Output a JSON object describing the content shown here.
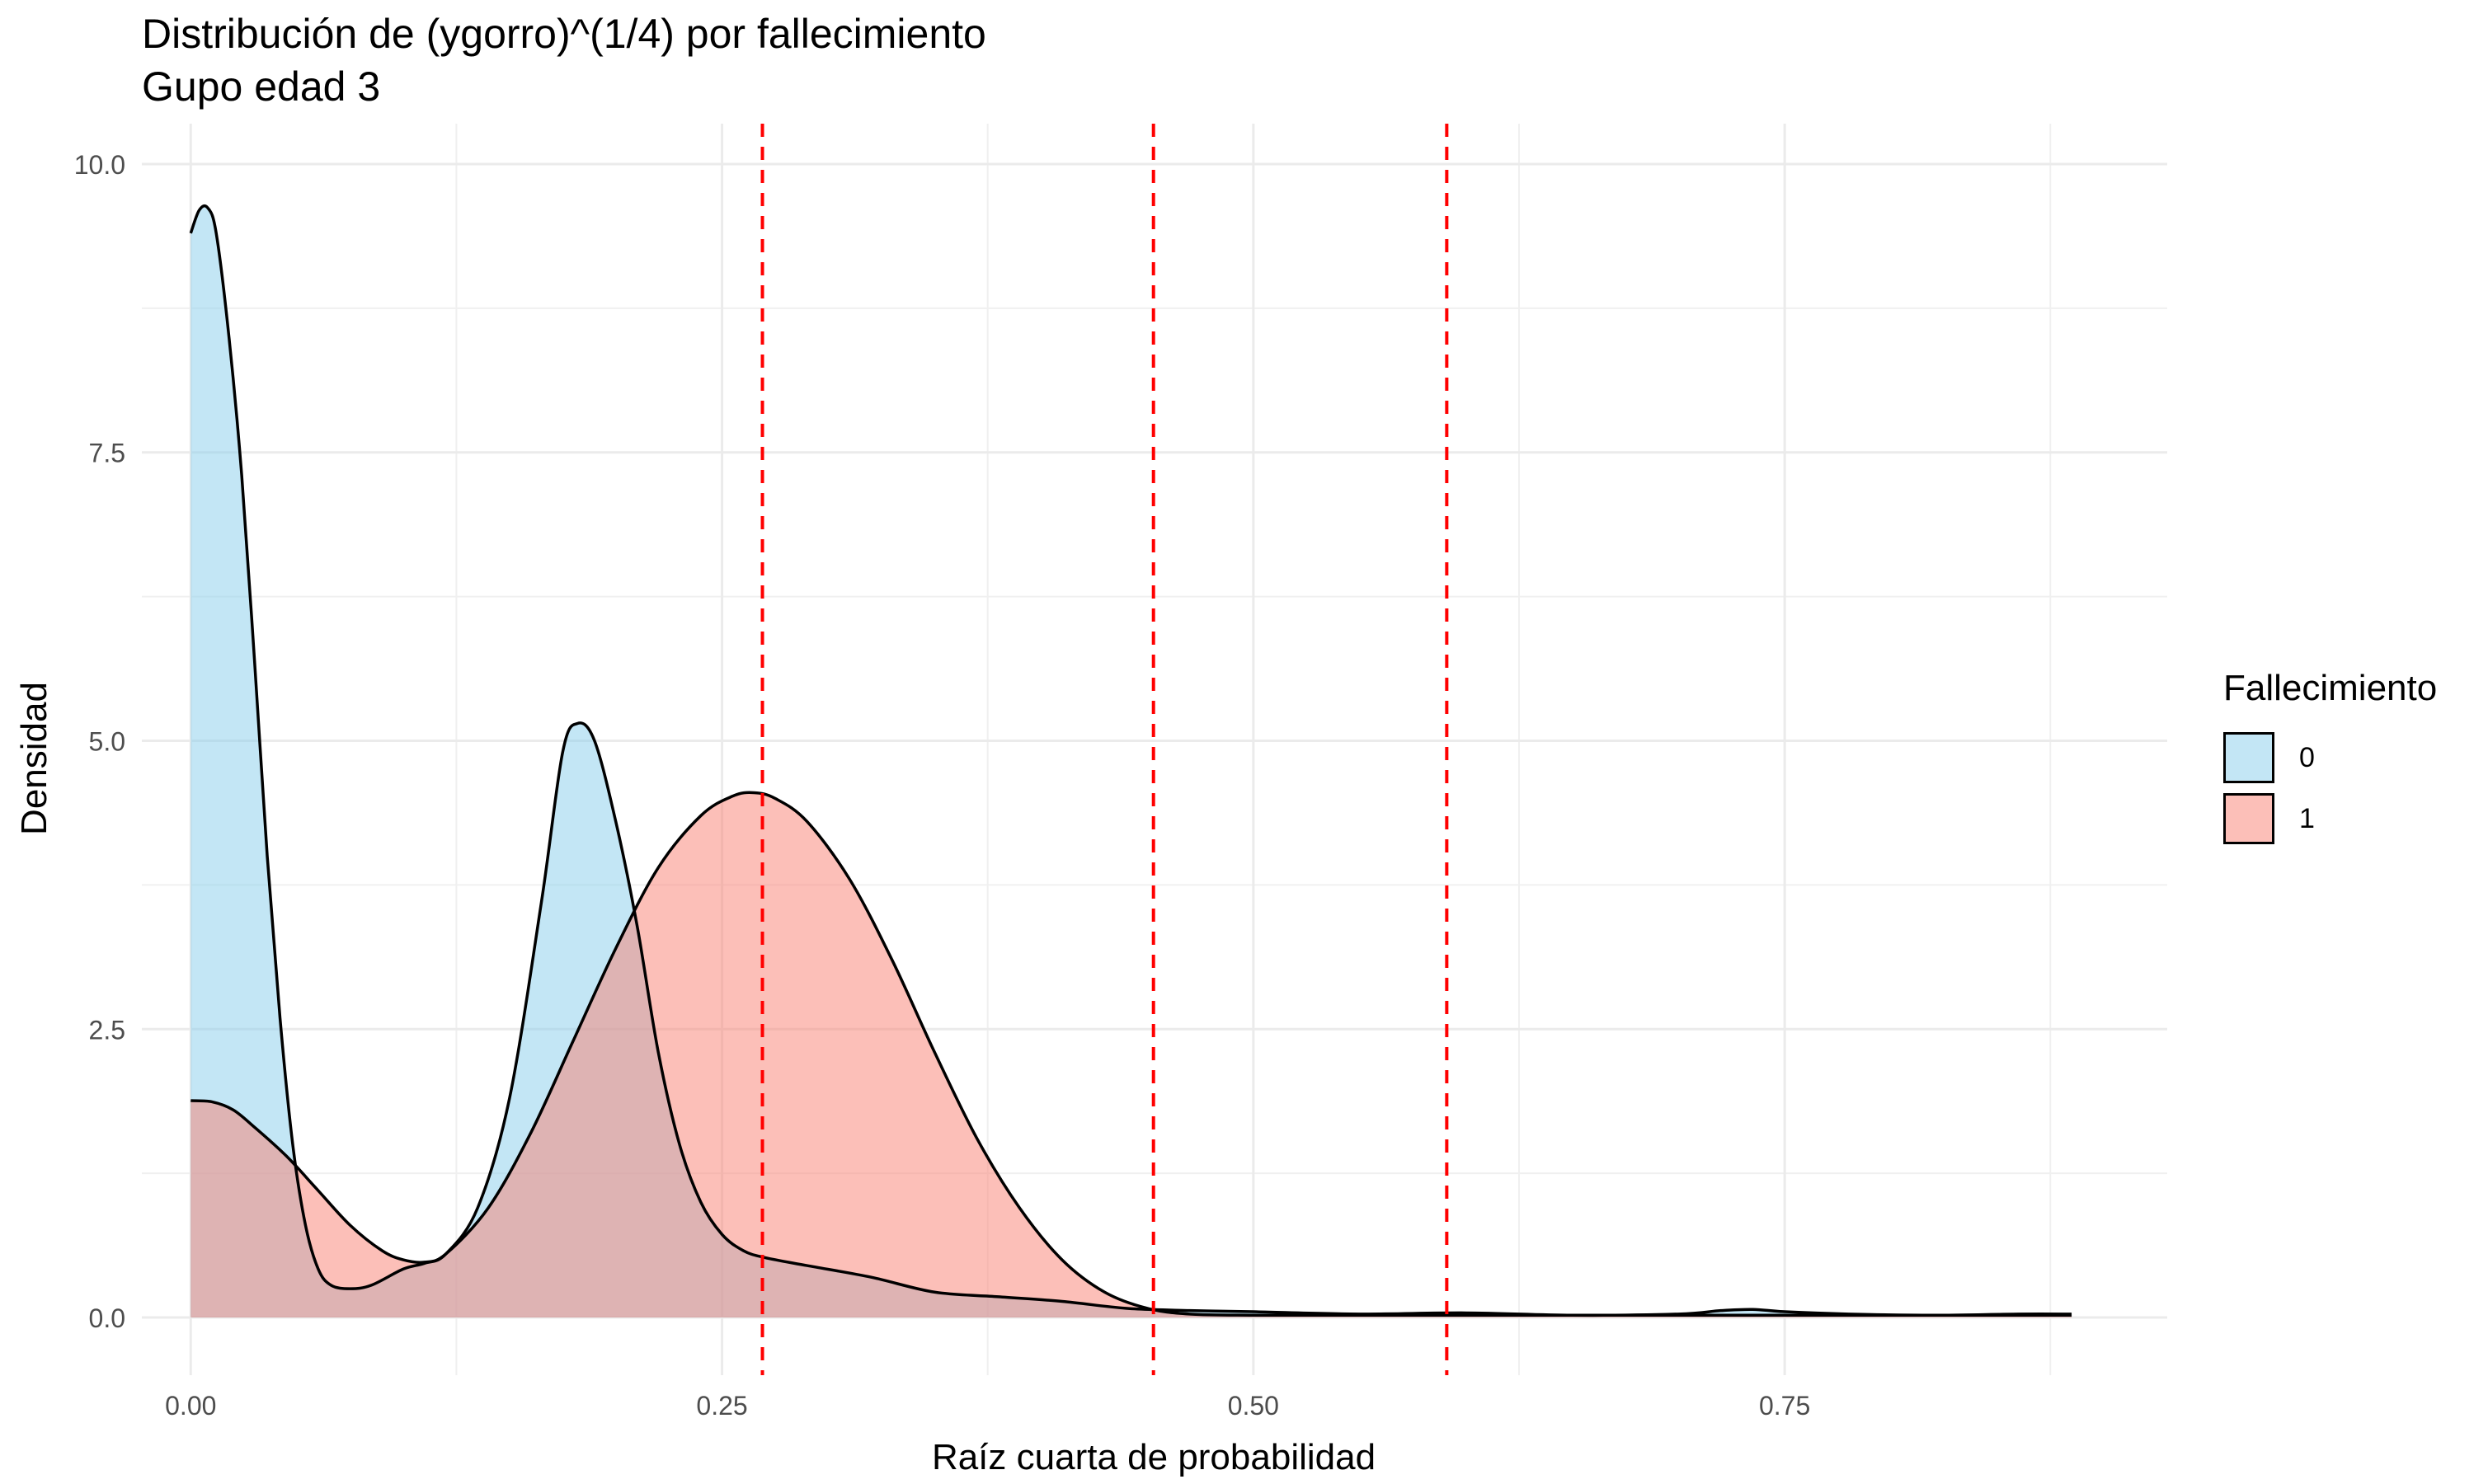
{
  "chart_data": {
    "type": "area",
    "title": "Distribución de (ygorro)^(1/4) por fallecimiento",
    "subtitle": "Gupo edad 3",
    "xlabel": "Raíz cuarta de probabilidad",
    "ylabel": "Densidad",
    "xlim": [
      -0.023,
      0.93
    ],
    "ylim": [
      -0.5,
      10.35
    ],
    "x_ticks": [
      0.0,
      0.25,
      0.5,
      0.75
    ],
    "x_tick_labels": [
      "0.00",
      "0.25",
      "0.50",
      "0.75"
    ],
    "y_ticks": [
      0.0,
      2.5,
      5.0,
      7.5,
      10.0
    ],
    "y_tick_labels": [
      "0.0",
      "2.5",
      "5.0",
      "7.5",
      "10.0"
    ],
    "grid": true,
    "legend": {
      "title": "Fallecimiento",
      "position": "right"
    },
    "vlines": {
      "x": [
        0.269,
        0.453,
        0.591
      ],
      "color": "#ff0000",
      "style": "dashed"
    },
    "series": [
      {
        "name": "0",
        "fill": "#87ceeb",
        "points": [
          [
            0.0,
            9.4
          ],
          [
            0.004,
            9.6
          ],
          [
            0.008,
            9.62
          ],
          [
            0.012,
            9.4
          ],
          [
            0.018,
            8.5
          ],
          [
            0.024,
            7.3
          ],
          [
            0.03,
            5.7
          ],
          [
            0.036,
            4.0
          ],
          [
            0.042,
            2.6
          ],
          [
            0.048,
            1.5
          ],
          [
            0.054,
            0.8
          ],
          [
            0.06,
            0.42
          ],
          [
            0.066,
            0.28
          ],
          [
            0.075,
            0.25
          ],
          [
            0.085,
            0.28
          ],
          [
            0.1,
            0.42
          ],
          [
            0.11,
            0.47
          ],
          [
            0.12,
            0.55
          ],
          [
            0.135,
            0.95
          ],
          [
            0.15,
            1.9
          ],
          [
            0.165,
            3.6
          ],
          [
            0.175,
            4.9
          ],
          [
            0.182,
            5.15
          ],
          [
            0.19,
            5.0
          ],
          [
            0.2,
            4.3
          ],
          [
            0.21,
            3.4
          ],
          [
            0.22,
            2.3
          ],
          [
            0.23,
            1.5
          ],
          [
            0.24,
            1.0
          ],
          [
            0.25,
            0.72
          ],
          [
            0.26,
            0.58
          ],
          [
            0.27,
            0.52
          ],
          [
            0.29,
            0.45
          ],
          [
            0.32,
            0.35
          ],
          [
            0.35,
            0.22
          ],
          [
            0.38,
            0.18
          ],
          [
            0.41,
            0.14
          ],
          [
            0.44,
            0.08
          ],
          [
            0.47,
            0.06
          ],
          [
            0.5,
            0.05
          ],
          [
            0.55,
            0.03
          ],
          [
            0.6,
            0.04
          ],
          [
            0.65,
            0.02
          ],
          [
            0.7,
            0.03
          ],
          [
            0.72,
            0.06
          ],
          [
            0.735,
            0.07
          ],
          [
            0.75,
            0.05
          ],
          [
            0.78,
            0.03
          ],
          [
            0.82,
            0.02
          ],
          [
            0.86,
            0.03
          ],
          [
            0.885,
            0.03
          ]
        ]
      },
      {
        "name": "1",
        "fill": "#fa8072",
        "points": [
          [
            0.0,
            1.88
          ],
          [
            0.01,
            1.87
          ],
          [
            0.02,
            1.8
          ],
          [
            0.03,
            1.65
          ],
          [
            0.045,
            1.4
          ],
          [
            0.06,
            1.1
          ],
          [
            0.075,
            0.8
          ],
          [
            0.09,
            0.58
          ],
          [
            0.1,
            0.5
          ],
          [
            0.11,
            0.48
          ],
          [
            0.12,
            0.55
          ],
          [
            0.14,
            0.95
          ],
          [
            0.16,
            1.6
          ],
          [
            0.18,
            2.4
          ],
          [
            0.2,
            3.2
          ],
          [
            0.22,
            3.9
          ],
          [
            0.24,
            4.35
          ],
          [
            0.255,
            4.52
          ],
          [
            0.265,
            4.55
          ],
          [
            0.275,
            4.5
          ],
          [
            0.29,
            4.3
          ],
          [
            0.31,
            3.8
          ],
          [
            0.33,
            3.1
          ],
          [
            0.35,
            2.3
          ],
          [
            0.37,
            1.55
          ],
          [
            0.39,
            0.95
          ],
          [
            0.41,
            0.5
          ],
          [
            0.43,
            0.22
          ],
          [
            0.45,
            0.08
          ],
          [
            0.47,
            0.03
          ],
          [
            0.5,
            0.02
          ],
          [
            0.55,
            0.02
          ],
          [
            0.6,
            0.02
          ],
          [
            0.7,
            0.02
          ],
          [
            0.8,
            0.02
          ],
          [
            0.885,
            0.02
          ]
        ]
      }
    ]
  }
}
